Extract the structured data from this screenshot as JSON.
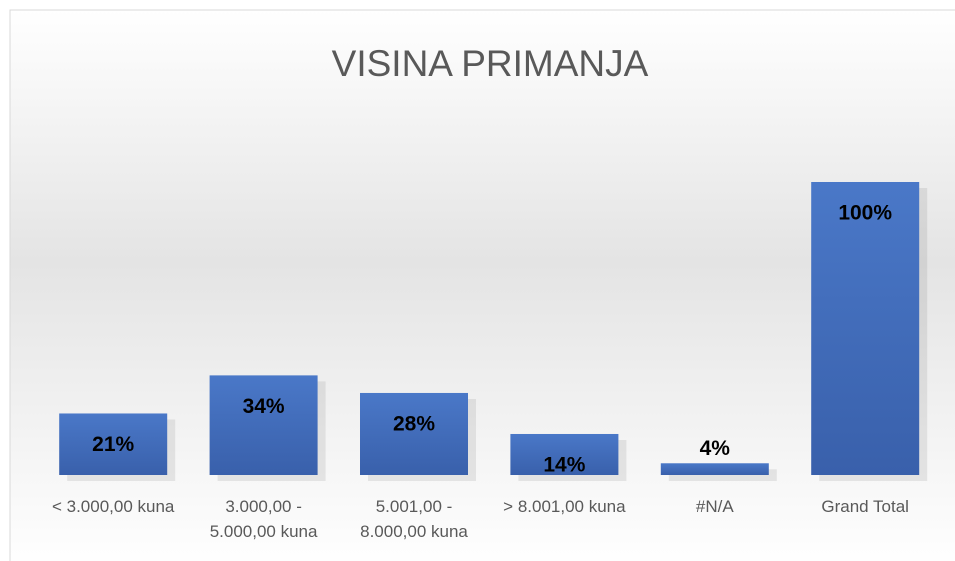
{
  "chart_data": {
    "type": "bar",
    "title": "VISINA PRIMANJA",
    "categories": [
      "< 3.000,00 kuna",
      "3.000,00 - 5.000,00 kuna",
      "5.001,00 - 8.000,00 kuna",
      "> 8.001,00 kuna",
      "#N/A",
      "Grand Total"
    ],
    "values": [
      21,
      34,
      28,
      14,
      4,
      100
    ],
    "value_labels": [
      "21%",
      "34%",
      "28%",
      "14%",
      "4%",
      "100%"
    ],
    "color": "#4472c4"
  }
}
